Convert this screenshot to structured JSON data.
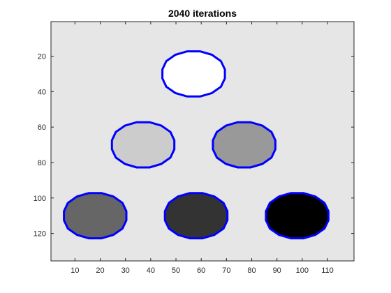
{
  "chart_data": {
    "type": "image",
    "title": "2040 iterations",
    "xlim": [
      0.5,
      120.5
    ],
    "ylim": [
      0.5,
      135.5
    ],
    "y_direction": "reversed",
    "grid": false,
    "background_color": "#e6e6e6",
    "contour_color": "#0000ff",
    "x_ticks": [
      10,
      20,
      30,
      40,
      50,
      60,
      70,
      80,
      90,
      100,
      110
    ],
    "y_ticks": [
      20,
      40,
      60,
      80,
      100,
      120
    ],
    "regions": [
      {
        "center": [
          57,
          30
        ],
        "radius": 13,
        "fill": "#ffffff"
      },
      {
        "center": [
          37,
          70
        ],
        "radius": 13,
        "fill": "#cccccc"
      },
      {
        "center": [
          77,
          70
        ],
        "radius": 13,
        "fill": "#999999"
      },
      {
        "center": [
          18,
          110
        ],
        "radius": 13,
        "fill": "#666666"
      },
      {
        "center": [
          58,
          110
        ],
        "radius": 13,
        "fill": "#333333"
      },
      {
        "center": [
          98,
          110
        ],
        "radius": 13,
        "fill": "#000000"
      }
    ]
  }
}
